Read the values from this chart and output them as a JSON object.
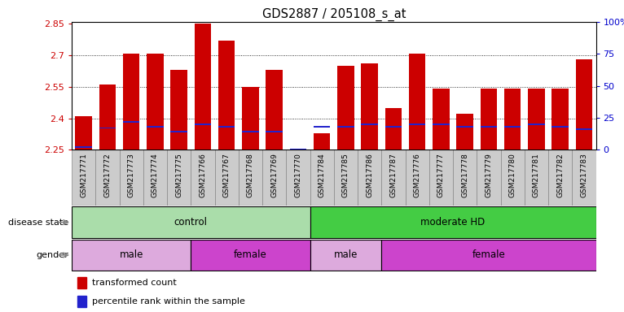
{
  "title": "GDS2887 / 205108_s_at",
  "samples": [
    "GSM217771",
    "GSM217772",
    "GSM217773",
    "GSM217774",
    "GSM217775",
    "GSM217766",
    "GSM217767",
    "GSM217768",
    "GSM217769",
    "GSM217770",
    "GSM217784",
    "GSM217785",
    "GSM217786",
    "GSM217787",
    "GSM217776",
    "GSM217777",
    "GSM217778",
    "GSM217779",
    "GSM217780",
    "GSM217781",
    "GSM217782",
    "GSM217783"
  ],
  "transformed_count": [
    2.41,
    2.56,
    2.71,
    2.71,
    2.63,
    2.85,
    2.77,
    2.55,
    2.63,
    2.256,
    2.33,
    2.65,
    2.66,
    2.45,
    2.71,
    2.54,
    2.42,
    2.54,
    2.54,
    2.54,
    2.54,
    2.68
  ],
  "percentile_values": [
    2,
    17,
    22,
    18,
    14,
    20,
    18,
    14,
    14,
    0,
    18,
    18,
    20,
    18,
    20,
    20,
    18,
    18,
    18,
    20,
    18,
    16
  ],
  "ymin": 2.25,
  "ymax": 2.86,
  "yticks_left": [
    2.25,
    2.4,
    2.55,
    2.7,
    2.85
  ],
  "yticks_right": [
    0,
    25,
    50,
    75,
    100
  ],
  "bar_color": "#cc0000",
  "blue_color": "#2222cc",
  "bg_color": "#ffffff",
  "disease_state": [
    {
      "label": "control",
      "start": 0,
      "end": 10,
      "color": "#aaddaa"
    },
    {
      "label": "moderate HD",
      "start": 10,
      "end": 22,
      "color": "#44cc44"
    }
  ],
  "gender": [
    {
      "label": "male",
      "start": 0,
      "end": 5,
      "color": "#ddaadd"
    },
    {
      "label": "female",
      "start": 5,
      "end": 10,
      "color": "#cc44cc"
    },
    {
      "label": "male",
      "start": 10,
      "end": 13,
      "color": "#ddaadd"
    },
    {
      "label": "female",
      "start": 13,
      "end": 22,
      "color": "#cc44cc"
    }
  ]
}
